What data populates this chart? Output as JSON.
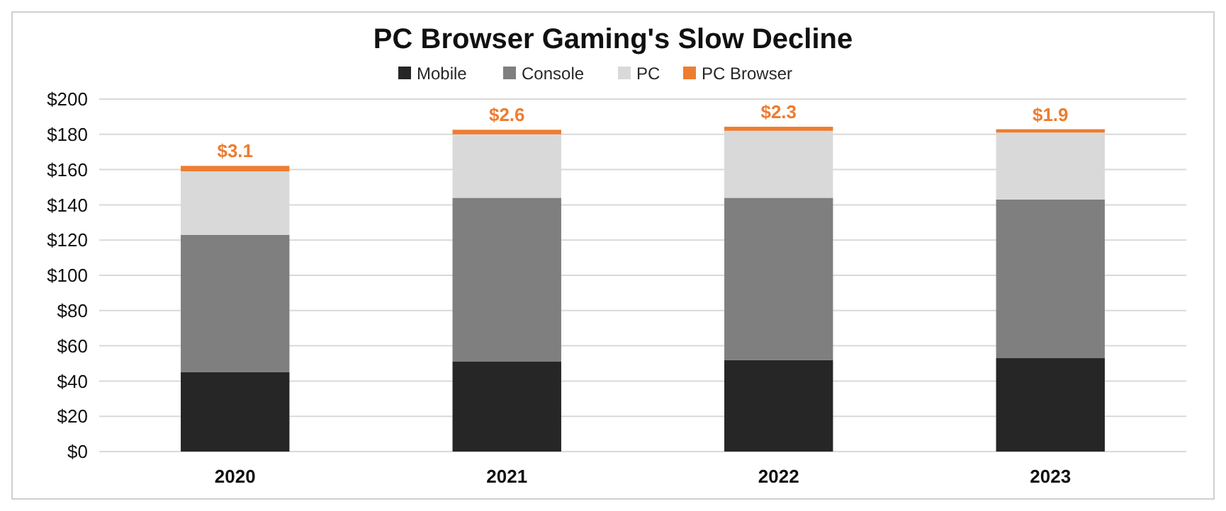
{
  "chart_data": {
    "type": "bar",
    "title": "PC Browser Gaming's Slow Decline",
    "stacked": true,
    "categories": [
      "2020",
      "2021",
      "2022",
      "2023"
    ],
    "series": [
      {
        "name": "Mobile",
        "color": "#262626",
        "values": [
          45,
          51,
          52,
          53
        ]
      },
      {
        "name": "Console",
        "color": "#7f7f7f",
        "values": [
          78,
          93,
          92,
          90
        ]
      },
      {
        "name": "PC",
        "color": "#d9d9d9",
        "values": [
          36,
          36,
          38,
          38
        ]
      },
      {
        "name": "PC Browser",
        "color": "#ed7d31",
        "values": [
          3.1,
          2.6,
          2.3,
          1.9
        ],
        "value_labels": [
          "$3.1",
          "$2.6",
          "$2.3",
          "$1.9"
        ]
      }
    ],
    "ylim": [
      0,
      200
    ],
    "yticks": [
      {
        "value": 0,
        "label": "$0"
      },
      {
        "value": 20,
        "label": "$20"
      },
      {
        "value": 40,
        "label": "$40"
      },
      {
        "value": 60,
        "label": "$60"
      },
      {
        "value": 80,
        "label": "$80"
      },
      {
        "value": 100,
        "label": "$100"
      },
      {
        "value": 120,
        "label": "$120"
      },
      {
        "value": 140,
        "label": "$140"
      },
      {
        "value": 160,
        "label": "$160"
      },
      {
        "value": 180,
        "label": "$180"
      },
      {
        "value": 200,
        "label": "$200"
      }
    ],
    "grid": "y",
    "legend": "top"
  }
}
